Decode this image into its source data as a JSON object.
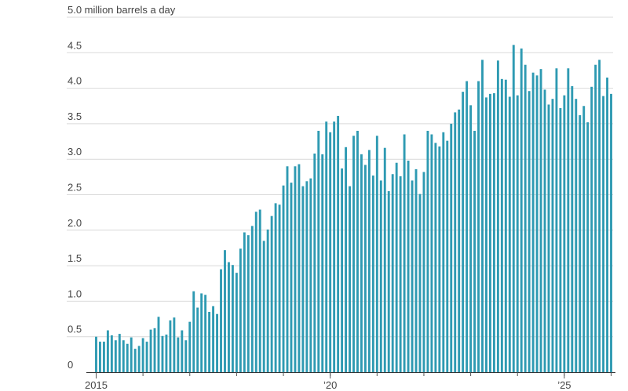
{
  "chart_data": {
    "type": "bar",
    "ylabel_unit": "million barrels a day",
    "ylim": [
      0,
      5.0
    ],
    "y_ticks": [
      {
        "value": 0,
        "label": "0"
      },
      {
        "value": 0.5,
        "label": "0.5"
      },
      {
        "value": 1.0,
        "label": "1.0"
      },
      {
        "value": 1.5,
        "label": "1.5"
      },
      {
        "value": 2.0,
        "label": "2.0"
      },
      {
        "value": 2.5,
        "label": "2.5"
      },
      {
        "value": 3.0,
        "label": "3.0"
      },
      {
        "value": 3.5,
        "label": "3.5"
      },
      {
        "value": 4.0,
        "label": "4.0"
      },
      {
        "value": 4.5,
        "label": "4.5"
      },
      {
        "value": 5.0,
        "label": "5.0 million barrels a day"
      }
    ],
    "x_ticks": [
      {
        "month": "2015-01",
        "label": "2015"
      },
      {
        "month": "2020-01",
        "label": "’20"
      },
      {
        "month": "2025-01",
        "label": "’25"
      }
    ],
    "x_start": "2015-01",
    "bar_color": "#2e9ab2",
    "grid": true,
    "values": [
      0.5,
      0.43,
      0.43,
      0.59,
      0.52,
      0.45,
      0.54,
      0.45,
      0.4,
      0.49,
      0.33,
      0.37,
      0.48,
      0.43,
      0.6,
      0.62,
      0.78,
      0.51,
      0.53,
      0.73,
      0.77,
      0.49,
      0.59,
      0.45,
      0.71,
      1.14,
      0.91,
      1.11,
      1.09,
      0.85,
      0.93,
      0.82,
      1.45,
      1.72,
      1.55,
      1.51,
      1.4,
      1.74,
      1.97,
      1.93,
      2.06,
      2.26,
      2.29,
      1.85,
      2.01,
      2.2,
      2.38,
      2.36,
      2.63,
      2.9,
      2.67,
      2.9,
      2.93,
      2.62,
      2.69,
      2.73,
      3.08,
      3.4,
      3.07,
      3.53,
      3.38,
      3.53,
      3.61,
      2.87,
      3.17,
      2.62,
      3.33,
      3.4,
      3.07,
      2.92,
      3.13,
      2.77,
      3.33,
      2.7,
      3.16,
      2.55,
      2.79,
      2.95,
      2.76,
      3.35,
      2.98,
      2.7,
      2.86,
      2.51,
      2.82,
      3.4,
      3.35,
      3.23,
      3.18,
      3.38,
      3.26,
      3.5,
      3.66,
      3.7,
      3.95,
      4.1,
      3.76,
      3.4,
      4.1,
      4.4,
      3.87,
      3.92,
      3.93,
      4.39,
      4.13,
      4.12,
      3.88,
      4.61,
      3.9,
      4.56,
      4.33,
      3.96,
      4.22,
      4.18,
      4.27,
      3.98,
      3.77,
      3.85,
      4.28,
      3.72,
      3.9,
      4.28,
      4.03,
      3.85,
      3.62,
      3.75,
      3.52,
      4.02,
      4.33,
      4.4,
      3.89,
      4.15,
      3.92
    ]
  }
}
